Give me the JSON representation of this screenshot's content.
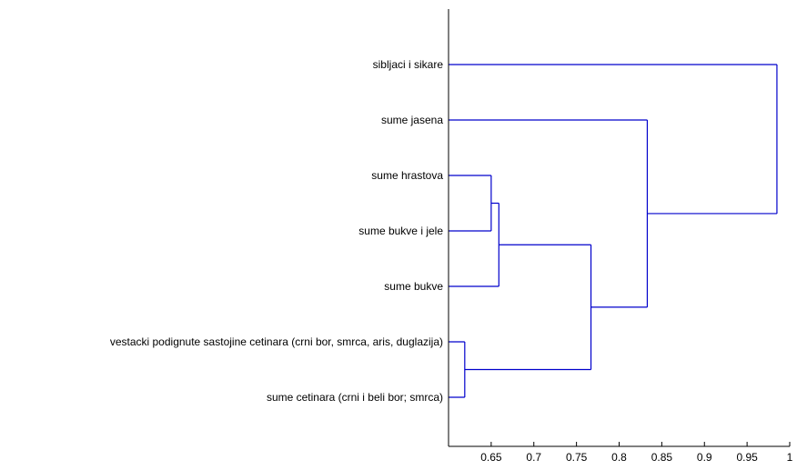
{
  "chart_data": {
    "type": "dendrogram",
    "title": "",
    "xlabel": "",
    "ylabel": "",
    "orientation": "horizontal",
    "xlim": [
      0.6,
      1.0
    ],
    "xticks": [
      0.65,
      0.7,
      0.75,
      0.8,
      0.85,
      0.9,
      0.95,
      1
    ],
    "xtick_labels": [
      "0.65",
      "0.7",
      "0.75",
      "0.8",
      "0.85",
      "0.9",
      "0.95",
      "1"
    ],
    "grid": false,
    "line_color": "#0000cc",
    "leaves": [
      "sibljaci i sikare",
      "sume jasena",
      "sume hrastova",
      "sume bukve i jele",
      "sume bukve",
      "vestacki podignute sastojine cetinara (crni bor, smrca, aris, duglazija)",
      "sume cetinara (crni i beli bor; smrca)"
    ],
    "merges": [
      {
        "id": "m1",
        "left": "leaf:5",
        "right": "leaf:6",
        "height": 0.619
      },
      {
        "id": "m2",
        "left": "leaf:2",
        "right": "leaf:3",
        "height": 0.65
      },
      {
        "id": "m3",
        "left": "m2",
        "right": "leaf:4",
        "height": 0.659
      },
      {
        "id": "m4",
        "left": "m3",
        "right": "m1",
        "height": 0.767
      },
      {
        "id": "m5",
        "left": "leaf:1",
        "right": "m4",
        "height": 0.833
      },
      {
        "id": "m6",
        "left": "leaf:0",
        "right": "m5",
        "height": 0.985
      }
    ]
  }
}
